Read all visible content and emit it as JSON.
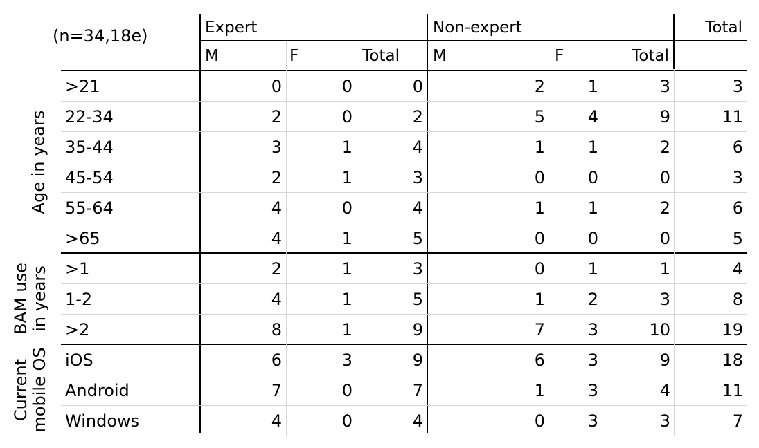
{
  "table": {
    "corner_label": "(n=34,18e)",
    "groups": [
      {
        "label": "Expert",
        "cols": [
          "M",
          "F",
          "Total"
        ]
      },
      {
        "label": "Non-expert",
        "cols": [
          "M",
          "F",
          "Total"
        ]
      }
    ],
    "grand_total_label": "Total",
    "sections": [
      {
        "label_lines": [
          "Age in years"
        ],
        "rows": [
          {
            "label": ">21",
            "values": [
              "0",
              "0",
              "0",
              "2",
              "1",
              "3",
              "3"
            ]
          },
          {
            "label": "22-34",
            "values": [
              "2",
              "0",
              "2",
              "5",
              "4",
              "9",
              "11"
            ]
          },
          {
            "label": "35-44",
            "values": [
              "3",
              "1",
              "4",
              "1",
              "1",
              "2",
              "6"
            ]
          },
          {
            "label": "45-54",
            "values": [
              "2",
              "1",
              "3",
              "0",
              "0",
              "0",
              "3"
            ]
          },
          {
            "label": "55-64",
            "values": [
              "4",
              "0",
              "4",
              "1",
              "1",
              "2",
              "6"
            ]
          },
          {
            "label": ">65",
            "values": [
              "4",
              "1",
              "5",
              "0",
              "0",
              "0",
              "5"
            ]
          }
        ]
      },
      {
        "label_lines": [
          "BAM use",
          "in years"
        ],
        "rows": [
          {
            "label": ">1",
            "values": [
              "2",
              "1",
              "3",
              "0",
              "1",
              "1",
              "4"
            ]
          },
          {
            "label": "1-2",
            "values": [
              "4",
              "1",
              "5",
              "1",
              "2",
              "3",
              "8"
            ]
          },
          {
            "label": ">2",
            "values": [
              "8",
              "1",
              "9",
              "7",
              "3",
              "10",
              "19"
            ]
          }
        ]
      },
      {
        "label_lines": [
          "Current",
          "mobile OS"
        ],
        "rows": [
          {
            "label": "iOS",
            "values": [
              "6",
              "3",
              "9",
              "6",
              "3",
              "9",
              "18"
            ]
          },
          {
            "label": "Android",
            "values": [
              "7",
              "0",
              "7",
              "1",
              "3",
              "4",
              "11"
            ]
          },
          {
            "label": "Windows",
            "values": [
              "4",
              "0",
              "4",
              "0",
              "3",
              "3",
              "7"
            ]
          }
        ]
      }
    ]
  }
}
